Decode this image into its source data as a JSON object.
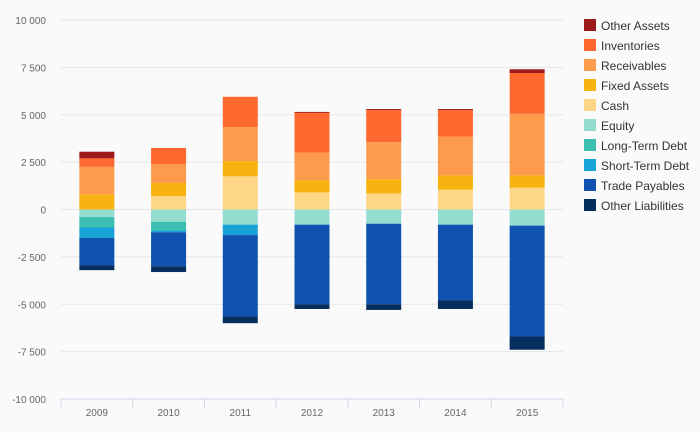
{
  "chart_data": {
    "type": "bar",
    "stacked": true,
    "categories": [
      "2009",
      "2010",
      "2011",
      "2012",
      "2013",
      "2014",
      "2015"
    ],
    "ylim": [
      -10000,
      10000
    ],
    "yticks": [
      10000,
      7500,
      5000,
      2500,
      0,
      -2500,
      -5000,
      -7500,
      -10000
    ],
    "ytick_labels": [
      "10 000",
      "7 500",
      "5 000",
      "2 500",
      "0",
      "-2 500",
      "-5 000",
      "-7 500",
      "-10 000"
    ],
    "grid": true,
    "legend_position": "right",
    "positive_series": [
      {
        "name": "Fixed Assets",
        "color": "#f7b30f",
        "values": [
          800,
          700,
          800,
          650,
          750,
          750,
          650
        ]
      },
      {
        "name": "Receivables",
        "color": "#fd9b4c",
        "values": [
          1450,
          1000,
          1800,
          1450,
          1950,
          2050,
          3250
        ]
      },
      {
        "name": "Inventories",
        "color": "#fe6930",
        "values": [
          450,
          850,
          1600,
          2100,
          1700,
          1400,
          2150
        ]
      },
      {
        "name": "Other Assets",
        "color": "#9c1a1a",
        "values": [
          350,
          0,
          0,
          50,
          50,
          50,
          200
        ]
      }
    ],
    "positive_base_series": [
      {
        "name": "Cash",
        "color": "#fdd785",
        "values": [
          0,
          700,
          1750,
          900,
          850,
          1050,
          1150
        ]
      }
    ],
    "negative_series": [
      {
        "name": "Equity",
        "color": "#93dcd0",
        "values": [
          -400,
          -650,
          -800,
          -800,
          -750,
          -800,
          -850
        ]
      },
      {
        "name": "Long-Term Debt",
        "color": "#3bbfb1",
        "values": [
          -550,
          -450,
          0,
          0,
          0,
          0,
          0
        ]
      },
      {
        "name": "Short-Term Debt",
        "color": "#18a3d6",
        "values": [
          -550,
          -100,
          -550,
          0,
          0,
          0,
          0
        ]
      },
      {
        "name": "Trade Payables",
        "color": "#0f52b0",
        "values": [
          -1450,
          -1800,
          -4300,
          -4200,
          -4250,
          -4000,
          -5850
        ]
      },
      {
        "name": "Other Liabilities",
        "color": "#052e5f",
        "values": [
          -250,
          -300,
          -350,
          -250,
          -300,
          -450,
          -700
        ]
      }
    ],
    "legend": [
      {
        "name": "Other Assets",
        "color": "#9c1a1a"
      },
      {
        "name": "Inventories",
        "color": "#fe6930"
      },
      {
        "name": "Receivables",
        "color": "#fd9b4c"
      },
      {
        "name": "Fixed Assets",
        "color": "#f7b30f"
      },
      {
        "name": "Cash",
        "color": "#fdd785"
      },
      {
        "name": "Equity",
        "color": "#93dcd0"
      },
      {
        "name": "Long-Term Debt",
        "color": "#3bbfb1"
      },
      {
        "name": "Short-Term Debt",
        "color": "#18a3d6"
      },
      {
        "name": "Trade Payables",
        "color": "#0f52b0"
      },
      {
        "name": "Other Liabilities",
        "color": "#052e5f"
      }
    ]
  }
}
